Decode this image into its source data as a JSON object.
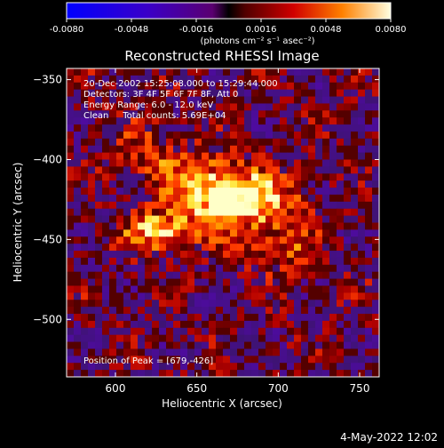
{
  "chart_data": {
    "type": "heatmap",
    "title": "Reconstructed RHESSI Image",
    "xlabel": "Heliocentric X (arcsec)",
    "ylabel": "Heliocentric Y (arcsec)",
    "xlim": [
      570,
      762
    ],
    "ylim": [
      -536,
      -343
    ],
    "x_ticks": [
      600,
      650,
      700,
      750
    ],
    "y_ticks": [
      -350,
      -400,
      -450,
      -500
    ],
    "colorbar": {
      "range": [
        -0.008,
        0.008
      ],
      "ticks": [
        "-0.0080",
        "-0.0048",
        "-0.0016",
        "0.0016",
        "0.0048",
        "0.0080"
      ],
      "unit_label": "(photons cm⁻² s⁻¹ asec⁻²)"
    },
    "annotations": [
      "20-Dec-2002 15:25:08.000 to 15:29:44.000",
      "Detectors: 3F 4F 5F 6F 7F 8F, Att 0",
      "Energy Range: 6.0 - 12.0 keV",
      "Clean     Total counts: 5.69E+04"
    ],
    "peak_text": "Position of Peak = [679,-426]",
    "peak": [
      679,
      -426
    ],
    "timestamp": "4-May-2022 12:02"
  }
}
